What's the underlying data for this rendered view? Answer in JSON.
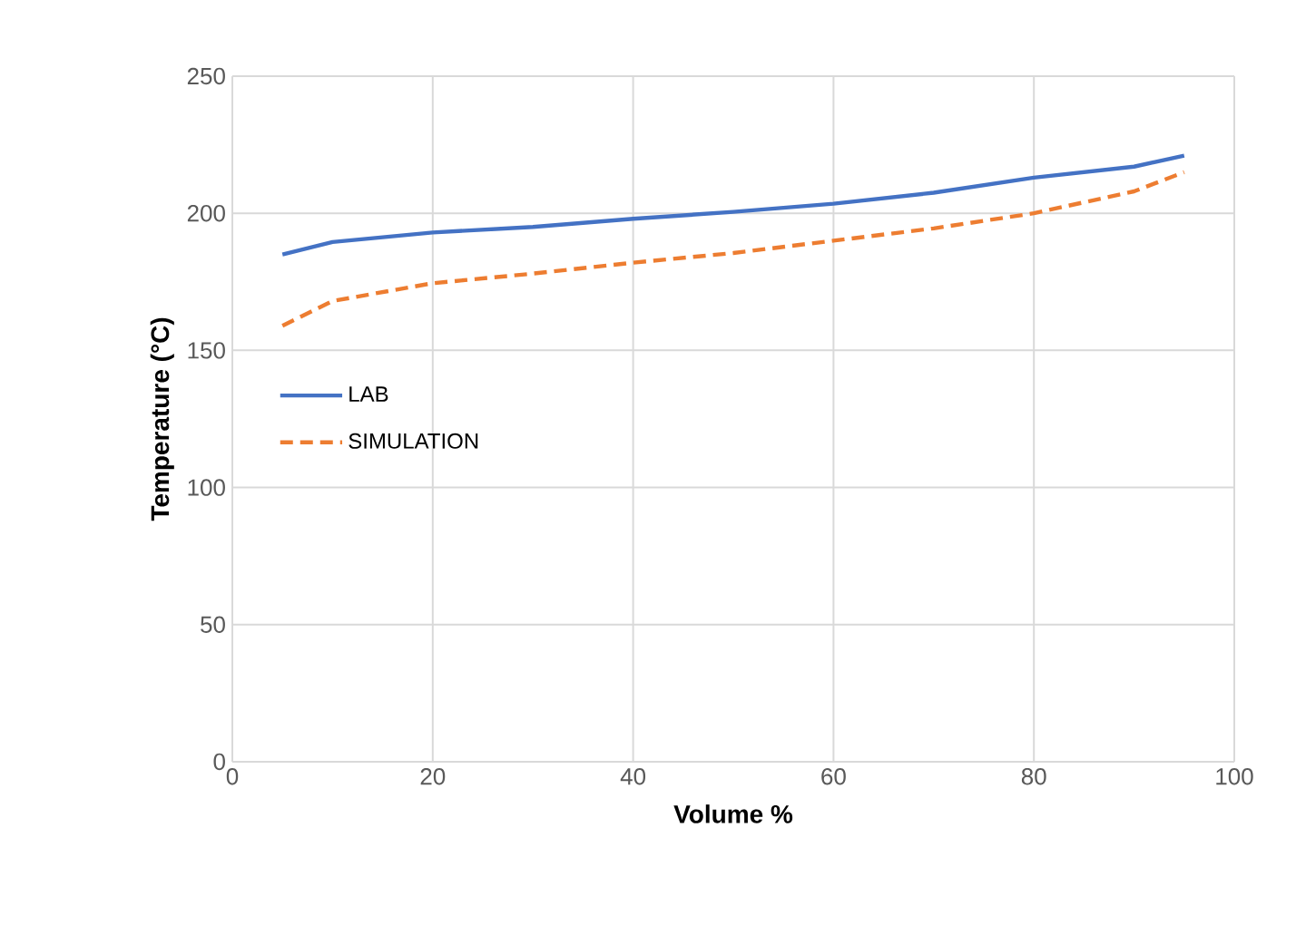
{
  "chart_data": {
    "type": "line",
    "xlabel": "Volume %",
    "ylabel": "Temperature  (°C)",
    "x": [
      5,
      10,
      20,
      30,
      40,
      50,
      60,
      70,
      80,
      90,
      95
    ],
    "series": [
      {
        "name": "LAB",
        "color": "#4472c4",
        "line_style": "solid",
        "values": [
          185,
          189.5,
          193,
          195,
          198,
          200.5,
          203.5,
          207.5,
          213,
          217,
          221
        ]
      },
      {
        "name": "SIMULATION",
        "color": "#ed7d31",
        "line_style": "dashed",
        "values": [
          159,
          168,
          174.5,
          178,
          182,
          185.5,
          190,
          194.5,
          200,
          208,
          215
        ]
      }
    ],
    "xlim": [
      0,
      100
    ],
    "xticks": [
      0,
      20,
      40,
      60,
      80,
      100
    ],
    "ylim": [
      0,
      250
    ],
    "yticks": [
      0,
      50,
      100,
      150,
      200,
      250
    ],
    "grid": true,
    "legend": "left",
    "marker": "none"
  }
}
